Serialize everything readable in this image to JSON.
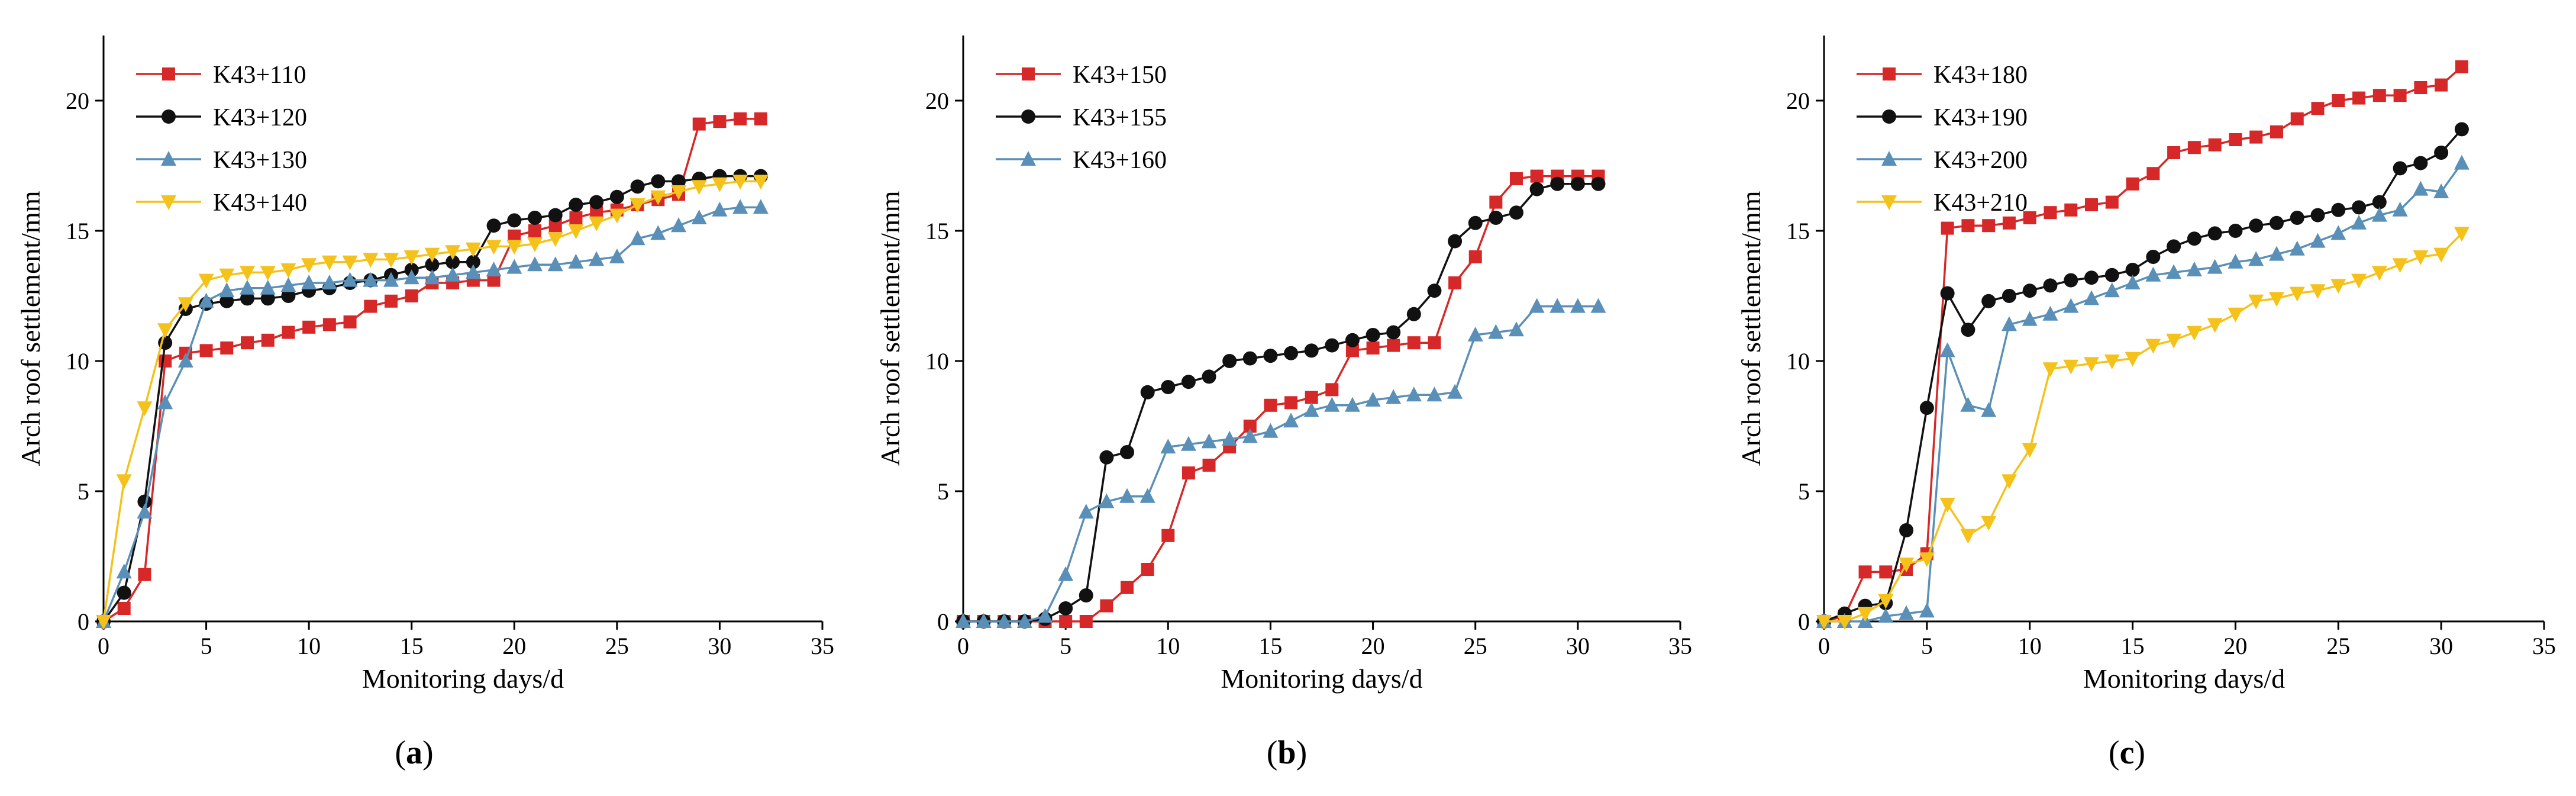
{
  "chart_data": [
    {
      "type": "line",
      "panel_label": "(a)",
      "panel_letter": "a",
      "xlabel": "Monitoring days/d",
      "ylabel": "Arch roof settlement/mm",
      "xlim": [
        0,
        35
      ],
      "ylim": [
        0,
        22.5
      ],
      "xticks": [
        0,
        5,
        10,
        15,
        20,
        25,
        30,
        35
      ],
      "yticks": [
        0,
        5,
        10,
        15,
        20
      ],
      "legend": "top-left",
      "series": [
        {
          "name": "K43+110",
          "color": "#d62828",
          "marker": "square",
          "x": [
            0,
            1,
            2,
            3,
            4,
            5,
            6,
            7,
            8,
            9,
            10,
            11,
            12,
            13,
            14,
            15,
            16,
            17,
            18,
            19,
            20,
            21,
            22,
            23,
            24,
            25,
            26,
            27,
            28,
            29,
            30,
            31,
            32
          ],
          "y": [
            0,
            0.5,
            1.8,
            10.0,
            10.3,
            10.4,
            10.5,
            10.7,
            10.8,
            11.1,
            11.3,
            11.4,
            11.5,
            12.1,
            12.3,
            12.5,
            13.0,
            13.0,
            13.1,
            13.1,
            14.8,
            15.0,
            15.2,
            15.5,
            15.7,
            15.8,
            16.0,
            16.2,
            16.4,
            19.1,
            19.2,
            19.3,
            19.3
          ]
        },
        {
          "name": "K43+120",
          "color": "#111111",
          "marker": "circle",
          "x": [
            0,
            1,
            2,
            3,
            4,
            5,
            6,
            7,
            8,
            9,
            10,
            11,
            12,
            13,
            14,
            15,
            16,
            17,
            18,
            19,
            20,
            21,
            22,
            23,
            24,
            25,
            26,
            27,
            28,
            29,
            30,
            31,
            32
          ],
          "y": [
            0,
            1.1,
            4.6,
            10.7,
            12.0,
            12.2,
            12.3,
            12.4,
            12.4,
            12.5,
            12.7,
            12.8,
            13.0,
            13.1,
            13.3,
            13.5,
            13.7,
            13.8,
            13.8,
            15.2,
            15.4,
            15.5,
            15.6,
            16.0,
            16.1,
            16.3,
            16.7,
            16.9,
            16.9,
            17.0,
            17.1,
            17.1,
            17.1
          ]
        },
        {
          "name": "K43+130",
          "color": "#5a90b8",
          "marker": "triangle",
          "x": [
            0,
            1,
            2,
            3,
            4,
            5,
            6,
            7,
            8,
            9,
            10,
            11,
            12,
            13,
            14,
            15,
            16,
            17,
            18,
            19,
            20,
            21,
            22,
            23,
            24,
            25,
            26,
            27,
            28,
            29,
            30,
            31,
            32
          ],
          "y": [
            0,
            1.9,
            4.2,
            8.4,
            10.0,
            12.3,
            12.7,
            12.8,
            12.8,
            12.9,
            13.0,
            13.0,
            13.1,
            13.1,
            13.1,
            13.2,
            13.2,
            13.3,
            13.4,
            13.5,
            13.6,
            13.7,
            13.7,
            13.8,
            13.9,
            14.0,
            14.7,
            14.9,
            15.2,
            15.5,
            15.8,
            15.9,
            15.9
          ]
        },
        {
          "name": "K43+140",
          "color": "#f5c21b",
          "marker": "triangle-down",
          "x": [
            0,
            1,
            2,
            3,
            4,
            5,
            6,
            7,
            8,
            9,
            10,
            11,
            12,
            13,
            14,
            15,
            16,
            17,
            18,
            19,
            20,
            21,
            22,
            23,
            24,
            25,
            26,
            27,
            28,
            29,
            30,
            31,
            32
          ],
          "y": [
            0,
            5.4,
            8.2,
            11.2,
            12.2,
            13.1,
            13.3,
            13.4,
            13.4,
            13.5,
            13.7,
            13.8,
            13.8,
            13.9,
            13.9,
            14.0,
            14.1,
            14.2,
            14.3,
            14.4,
            14.4,
            14.5,
            14.7,
            15.0,
            15.3,
            15.6,
            16.0,
            16.3,
            16.5,
            16.7,
            16.8,
            16.9,
            16.9
          ]
        }
      ]
    },
    {
      "type": "line",
      "panel_label": "(b)",
      "panel_letter": "b",
      "xlabel": "Monitoring days/d",
      "ylabel": "Arch roof settlement/mm",
      "xlim": [
        0,
        35
      ],
      "ylim": [
        0,
        22.5
      ],
      "xticks": [
        0,
        5,
        10,
        15,
        20,
        25,
        30,
        35
      ],
      "yticks": [
        0,
        5,
        10,
        15,
        20
      ],
      "legend": "top-left",
      "series": [
        {
          "name": "K43+150",
          "color": "#d62828",
          "marker": "square",
          "x": [
            0,
            1,
            2,
            3,
            4,
            5,
            6,
            7,
            8,
            9,
            10,
            11,
            12,
            13,
            14,
            15,
            16,
            17,
            18,
            19,
            20,
            21,
            22,
            23,
            24,
            25,
            26,
            27,
            28,
            29,
            30,
            31
          ],
          "y": [
            0,
            0,
            0,
            0,
            0,
            0,
            0,
            0.6,
            1.3,
            2.0,
            3.3,
            5.7,
            6.0,
            6.7,
            7.5,
            8.3,
            8.4,
            8.6,
            8.9,
            10.4,
            10.5,
            10.6,
            10.7,
            10.7,
            13.0,
            14.0,
            16.1,
            17.0,
            17.1,
            17.1,
            17.1,
            17.1
          ]
        },
        {
          "name": "K43+155",
          "color": "#111111",
          "marker": "circle",
          "x": [
            0,
            1,
            2,
            3,
            4,
            5,
            6,
            7,
            8,
            9,
            10,
            11,
            12,
            13,
            14,
            15,
            16,
            17,
            18,
            19,
            20,
            21,
            22,
            23,
            24,
            25,
            26,
            27,
            28,
            29,
            30,
            31
          ],
          "y": [
            0,
            0,
            0,
            0,
            0.1,
            0.5,
            1.0,
            6.3,
            6.5,
            8.8,
            9.0,
            9.2,
            9.4,
            10.0,
            10.1,
            10.2,
            10.3,
            10.4,
            10.6,
            10.8,
            11.0,
            11.1,
            11.8,
            12.7,
            14.6,
            15.3,
            15.5,
            15.7,
            16.6,
            16.8,
            16.8,
            16.8
          ]
        },
        {
          "name": "K43+160",
          "color": "#5a90b8",
          "marker": "triangle",
          "x": [
            0,
            1,
            2,
            3,
            4,
            5,
            6,
            7,
            8,
            9,
            10,
            11,
            12,
            13,
            14,
            15,
            16,
            17,
            18,
            19,
            20,
            21,
            22,
            23,
            24,
            25,
            26,
            27,
            28,
            29,
            30,
            31
          ],
          "y": [
            0,
            0,
            0,
            0,
            0.2,
            1.8,
            4.2,
            4.6,
            4.8,
            4.8,
            6.7,
            6.8,
            6.9,
            7.0,
            7.1,
            7.3,
            7.7,
            8.1,
            8.3,
            8.3,
            8.5,
            8.6,
            8.7,
            8.7,
            8.8,
            11.0,
            11.1,
            11.2,
            12.1,
            12.1,
            12.1,
            12.1
          ]
        }
      ]
    },
    {
      "type": "line",
      "panel_label": "(c)",
      "panel_letter": "c",
      "xlabel": "Monitoring days/d",
      "ylabel": "Arch roof settlement/mm",
      "xlim": [
        0,
        35
      ],
      "ylim": [
        0,
        22.5
      ],
      "xticks": [
        0,
        5,
        10,
        15,
        20,
        25,
        30,
        35
      ],
      "yticks": [
        0,
        5,
        10,
        15,
        20
      ],
      "legend": "top-left",
      "series": [
        {
          "name": "K43+180",
          "color": "#d62828",
          "marker": "square",
          "x": [
            0,
            1,
            2,
            3,
            4,
            5,
            6,
            7,
            8,
            9,
            10,
            11,
            12,
            13,
            14,
            15,
            16,
            17,
            18,
            19,
            20,
            21,
            22,
            23,
            24,
            25,
            26,
            27,
            28,
            29,
            30,
            31
          ],
          "y": [
            0,
            0.2,
            1.9,
            1.9,
            2.0,
            2.6,
            15.1,
            15.2,
            15.2,
            15.3,
            15.5,
            15.7,
            15.8,
            16.0,
            16.1,
            16.8,
            17.2,
            18.0,
            18.2,
            18.3,
            18.5,
            18.6,
            18.8,
            19.3,
            19.7,
            20.0,
            20.1,
            20.2,
            20.2,
            20.5,
            20.6,
            21.3
          ]
        },
        {
          "name": "K43+190",
          "color": "#111111",
          "marker": "circle",
          "x": [
            0,
            1,
            2,
            3,
            4,
            5,
            6,
            7,
            8,
            9,
            10,
            11,
            12,
            13,
            14,
            15,
            16,
            17,
            18,
            19,
            20,
            21,
            22,
            23,
            24,
            25,
            26,
            27,
            28,
            29,
            30,
            31
          ],
          "y": [
            0,
            0.3,
            0.6,
            0.7,
            3.5,
            8.2,
            12.6,
            11.2,
            12.3,
            12.5,
            12.7,
            12.9,
            13.1,
            13.2,
            13.3,
            13.5,
            14.0,
            14.4,
            14.7,
            14.9,
            15.0,
            15.2,
            15.3,
            15.5,
            15.6,
            15.8,
            15.9,
            16.1,
            17.4,
            17.6,
            18.0,
            18.9
          ]
        },
        {
          "name": "K43+200",
          "color": "#5a90b8",
          "marker": "triangle",
          "x": [
            0,
            1,
            2,
            3,
            4,
            5,
            6,
            7,
            8,
            9,
            10,
            11,
            12,
            13,
            14,
            15,
            16,
            17,
            18,
            19,
            20,
            21,
            22,
            23,
            24,
            25,
            26,
            27,
            28,
            29,
            30,
            31
          ],
          "y": [
            0,
            0,
            0,
            0.2,
            0.3,
            0.4,
            10.4,
            8.3,
            8.1,
            11.4,
            11.6,
            11.8,
            12.1,
            12.4,
            12.7,
            13.0,
            13.3,
            13.4,
            13.5,
            13.6,
            13.8,
            13.9,
            14.1,
            14.3,
            14.6,
            14.9,
            15.3,
            15.6,
            15.8,
            16.6,
            16.5,
            17.6
          ]
        },
        {
          "name": "K43+210",
          "color": "#f5c21b",
          "marker": "triangle-down",
          "x": [
            0,
            1,
            2,
            3,
            4,
            5,
            6,
            7,
            8,
            9,
            10,
            11,
            12,
            13,
            14,
            15,
            16,
            17,
            18,
            19,
            20,
            21,
            22,
            23,
            24,
            25,
            26,
            27,
            28,
            29,
            30,
            31
          ],
          "y": [
            0,
            0,
            0.3,
            0.8,
            2.2,
            2.4,
            4.5,
            3.3,
            3.8,
            5.4,
            6.6,
            9.7,
            9.8,
            9.9,
            10.0,
            10.1,
            10.6,
            10.8,
            11.1,
            11.4,
            11.8,
            12.3,
            12.4,
            12.6,
            12.7,
            12.9,
            13.1,
            13.4,
            13.7,
            14.0,
            14.1,
            14.9
          ]
        }
      ]
    }
  ]
}
